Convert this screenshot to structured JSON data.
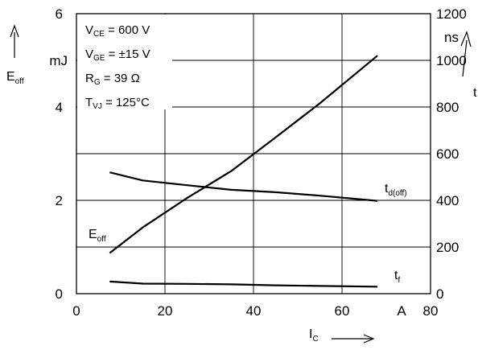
{
  "chart_data": {
    "type": "line",
    "x": {
      "label": "I",
      "label_sub": "C",
      "unit": "A",
      "min": 0,
      "max": 80,
      "ticks": [
        0,
        20,
        40,
        60,
        80
      ]
    },
    "y_left": {
      "label": "E",
      "label_sub": "off",
      "unit": "mJ",
      "min": 0,
      "max": 6,
      "ticks": [
        0,
        2,
        4,
        6
      ]
    },
    "y_right": {
      "label": "t",
      "unit": "ns",
      "min": 0,
      "max": 1200,
      "ticks": [
        0,
        200,
        400,
        600,
        800,
        1000,
        1200
      ]
    },
    "conditions": [
      {
        "name": "V",
        "sub": "CE",
        "value": "= 600 V"
      },
      {
        "name": "V",
        "sub": "GE",
        "value": "= ±15 V"
      },
      {
        "name": "R",
        "sub": "G",
        "value": "=  39 Ω"
      },
      {
        "name": "T",
        "sub": "VJ",
        "value": " = 125°C"
      }
    ],
    "series": [
      {
        "name": "E",
        "name_sub": "off",
        "axis": "left",
        "x": [
          7.5,
          15,
          25,
          35,
          45,
          55,
          68
        ],
        "y": [
          0.87,
          1.42,
          2.05,
          2.63,
          3.35,
          4.08,
          5.1
        ]
      },
      {
        "name": "t",
        "name_sub": "d(off)",
        "axis": "right",
        "x": [
          7.5,
          15,
          25,
          35,
          45,
          55,
          68
        ],
        "y": [
          520,
          485,
          465,
          445,
          435,
          420,
          398
        ]
      },
      {
        "name": "t",
        "name_sub": "f",
        "axis": "right",
        "x": [
          7.5,
          15,
          25,
          35,
          45,
          55,
          68
        ],
        "y": [
          52,
          43,
          42,
          40,
          36,
          33,
          30
        ]
      }
    ]
  }
}
